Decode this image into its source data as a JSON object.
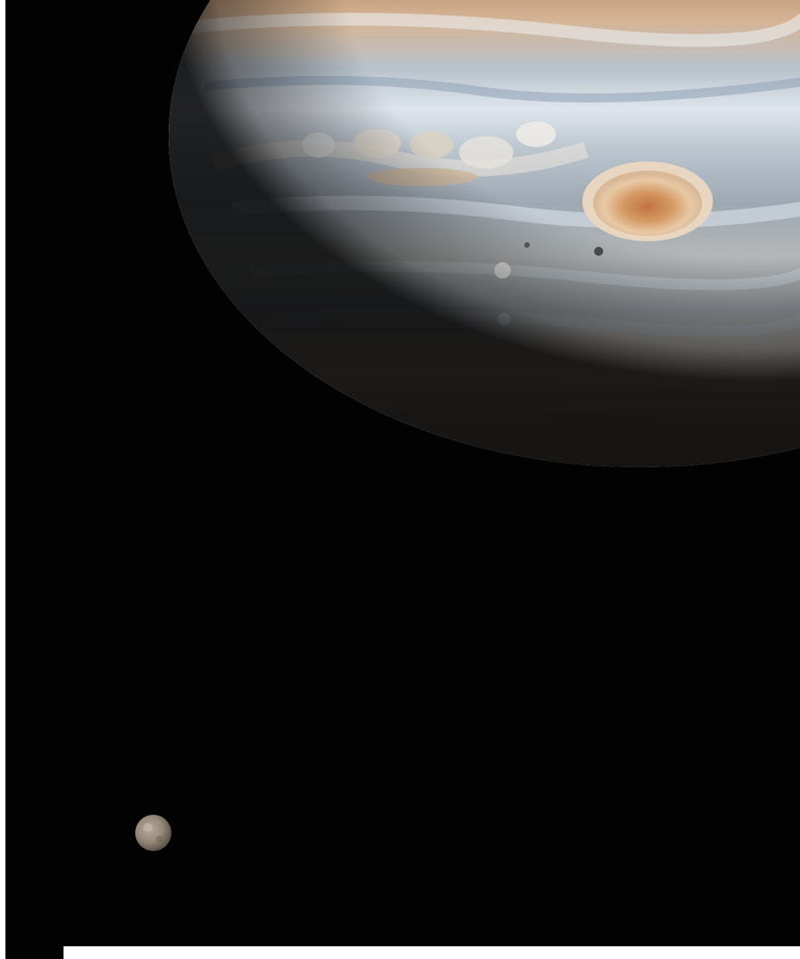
{
  "scene": {
    "background_color": "#020203",
    "frame_color": "#ffffff",
    "subjects": [
      {
        "name": "planet-jupiter",
        "features": [
          "cloud-bands",
          "great-red-spot",
          "storm-ovals",
          "moon-shadow"
        ]
      },
      {
        "name": "moon-ganymede"
      }
    ]
  },
  "colors": {
    "band_light": "#cfd8e2",
    "band_blue": "#9fb0c4",
    "band_tan": "#c7a27c",
    "band_orange": "#c98f5c",
    "red_spot": "#d9a06c",
    "red_spot_core": "#c57a45",
    "moon_surface": "#9e8f80"
  }
}
